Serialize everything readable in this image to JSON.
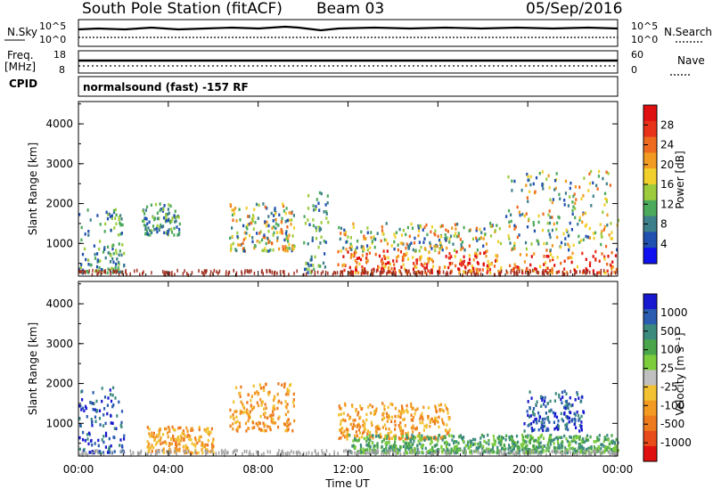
{
  "header": {
    "station": "South Pole Station (fitACF)",
    "beam": "Beam 03",
    "date": "05/Sep/2016"
  },
  "param_panels": {
    "nsky_label": "N.Sky",
    "nsky_ticks": [
      "10^5",
      "10^0"
    ],
    "nsearch_label": "N.Search",
    "nsearch_ticks": [
      "10^5",
      "10^0"
    ],
    "freq_label_1": "Freq.",
    "freq_label_2": "[MHz]",
    "freq_ticks": [
      "18",
      "8"
    ],
    "nave_label": "Nave",
    "nave_ticks": [
      "60",
      "0"
    ],
    "cpid_label": "CPID",
    "cpid_text": "normalsound (fast) -157 RF"
  },
  "chart_data": [
    {
      "type": "heatmap",
      "title": "",
      "parameter": "Power",
      "ylabel": "Slant Range [km]",
      "xlabel": "",
      "ylim": [
        180,
        4560
      ],
      "yticks": [
        "1000",
        "2000",
        "3000",
        "4000"
      ],
      "xticks": [
        "00:00",
        "04:00",
        "08:00",
        "12:00",
        "16:00",
        "20:00",
        "00:00"
      ],
      "colorbar": {
        "label": "Power [dB]",
        "ticks": [
          "4",
          "8",
          "12",
          "16",
          "20",
          "24",
          "28"
        ],
        "colors": [
          "#1010f0",
          "#2050b0",
          "#3d7f8a",
          "#4caa5c",
          "#9ccc3c",
          "#f2d02c",
          "#f29a22",
          "#ee6a1e",
          "#e8321a",
          "#e01010"
        ]
      },
      "echo_regions_approx": [
        {
          "time_h": [
            0.0,
            2.0
          ],
          "range_km": [
            250,
            1900
          ],
          "dominant": "low-medium"
        },
        {
          "time_h": [
            2.8,
            4.5
          ],
          "range_km": [
            1200,
            2000
          ],
          "dominant": "low"
        },
        {
          "time_h": [
            6.7,
            9.6
          ],
          "range_km": [
            800,
            2000
          ],
          "dominant": "medium-high"
        },
        {
          "time_h": [
            10.0,
            11.1
          ],
          "range_km": [
            250,
            2300
          ],
          "dominant": "low"
        },
        {
          "time_h": [
            11.5,
            18.8
          ],
          "range_km": [
            250,
            1500
          ],
          "dominant": "high near 500 km"
        },
        {
          "time_h": [
            19.0,
            24.0
          ],
          "range_km": [
            250,
            2800
          ],
          "dominant": "high 700-1200 km"
        }
      ]
    },
    {
      "type": "heatmap",
      "title": "",
      "parameter": "Velocity",
      "ylabel": "Slant Range [km]",
      "xlabel": "Time UT",
      "ylim": [
        180,
        4560
      ],
      "yticks": [
        "1000",
        "2000",
        "3000",
        "4000"
      ],
      "xticks": [
        "00:00",
        "04:00",
        "08:00",
        "12:00",
        "16:00",
        "20:00",
        "00:00"
      ],
      "colorbar": {
        "label": "Velocity [m s⁻¹]",
        "ticks": [
          "1000",
          "500",
          "100",
          "25",
          "-25",
          "-100",
          "-500",
          "-1000"
        ],
        "colors": [
          "#1818d0",
          "#2a5cb0",
          "#3c8a7e",
          "#4aa64a",
          "#7ccc3c",
          "#c0c0c0",
          "#f2c232",
          "#f29a22",
          "#ee7a1e",
          "#e84a1a",
          "#e01010"
        ]
      },
      "echo_regions_approx": [
        {
          "time_h": [
            0.0,
            2.0
          ],
          "range_km": [
            250,
            1900
          ],
          "dominant": "positive (blue/green)"
        },
        {
          "time_h": [
            3.0,
            6.0
          ],
          "range_km": [
            250,
            900
          ],
          "dominant": "negative (orange)"
        },
        {
          "time_h": [
            6.7,
            9.6
          ],
          "range_km": [
            800,
            2000
          ],
          "dominant": "negative (orange)"
        },
        {
          "time_h": [
            11.5,
            16.5
          ],
          "range_km": [
            600,
            1500
          ],
          "dominant": "negative (orange)"
        },
        {
          "time_h": [
            12.0,
            24.0
          ],
          "range_km": [
            250,
            700
          ],
          "dominant": "positive (green)"
        },
        {
          "time_h": [
            19.8,
            22.5
          ],
          "range_km": [
            800,
            1800
          ],
          "dominant": "positive (blue)"
        }
      ]
    }
  ]
}
